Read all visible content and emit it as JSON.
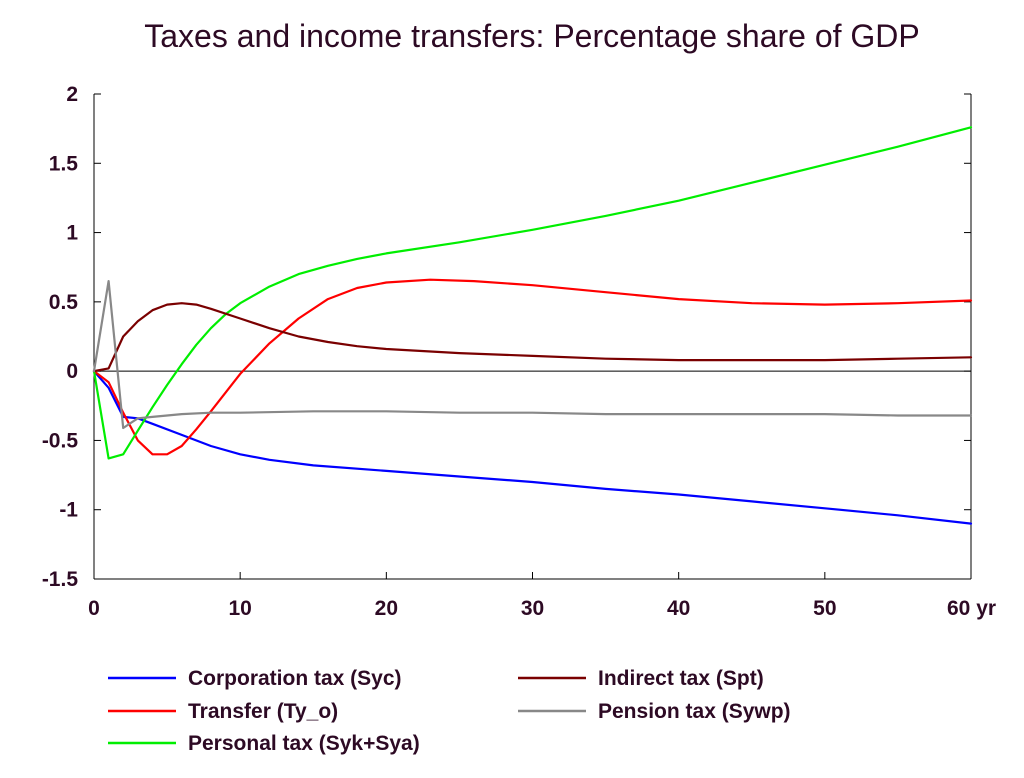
{
  "chart_data": {
    "type": "line",
    "title": "Taxes and income transfers: Percentage share of GDP",
    "xlabel": "",
    "ylabel": "",
    "x_unit_label": "yr",
    "xlim": [
      0,
      60
    ],
    "ylim": [
      -1.5,
      2
    ],
    "x_ticks": [
      0,
      10,
      20,
      30,
      40,
      50,
      60
    ],
    "x_tick_labels": [
      "0",
      "10",
      "20",
      "30",
      "40",
      "50",
      "60 yr"
    ],
    "y_ticks": [
      -1.5,
      -1,
      -0.5,
      0,
      0.5,
      1,
      1.5,
      2
    ],
    "y_tick_labels": [
      "-1.5",
      "-1",
      "-0.5",
      "0",
      "0.5",
      "1",
      "1.5",
      "2"
    ],
    "grid": false,
    "zero_line": true,
    "legend_position": "bottom",
    "series": [
      {
        "name": "Corporation tax (Syc)",
        "color": "#0000ff",
        "legend_col": 0,
        "legend_row": 0,
        "x": [
          0,
          1,
          2,
          3,
          4,
          6,
          8,
          10,
          12,
          15,
          20,
          25,
          30,
          35,
          40,
          45,
          50,
          55,
          60
        ],
        "y": [
          0,
          -0.12,
          -0.33,
          -0.34,
          -0.38,
          -0.46,
          -0.54,
          -0.6,
          -0.64,
          -0.68,
          -0.72,
          -0.76,
          -0.8,
          -0.85,
          -0.89,
          -0.94,
          -0.99,
          -1.04,
          -1.1
        ]
      },
      {
        "name": "Transfer (Ty_o)",
        "color": "#ff0000",
        "legend_col": 0,
        "legend_row": 1,
        "x": [
          0,
          1,
          2,
          3,
          4,
          5,
          6,
          7,
          8,
          10,
          12,
          14,
          16,
          18,
          20,
          23,
          26,
          30,
          35,
          40,
          45,
          50,
          55,
          60
        ],
        "y": [
          0,
          -0.08,
          -0.3,
          -0.5,
          -0.6,
          -0.6,
          -0.54,
          -0.42,
          -0.29,
          -0.02,
          0.2,
          0.38,
          0.52,
          0.6,
          0.64,
          0.66,
          0.65,
          0.62,
          0.57,
          0.52,
          0.49,
          0.48,
          0.49,
          0.51
        ]
      },
      {
        "name": "Personal tax (Syk+Sya)",
        "color": "#00ee00",
        "legend_col": 0,
        "legend_row": 2,
        "x": [
          0,
          1,
          2,
          3,
          4,
          5,
          6,
          7,
          8,
          9,
          10,
          12,
          14,
          16,
          18,
          20,
          25,
          30,
          35,
          40,
          45,
          50,
          55,
          60
        ],
        "y": [
          0,
          -0.63,
          -0.6,
          -0.43,
          -0.26,
          -0.1,
          0.05,
          0.19,
          0.31,
          0.41,
          0.49,
          0.61,
          0.7,
          0.76,
          0.81,
          0.85,
          0.93,
          1.02,
          1.12,
          1.23,
          1.36,
          1.49,
          1.62,
          1.76
        ]
      },
      {
        "name": "Indirect tax (Spt)",
        "color": "#7a0000",
        "legend_col": 1,
        "legend_row": 0,
        "x": [
          0,
          1,
          2,
          3,
          4,
          5,
          6,
          7,
          8,
          10,
          12,
          14,
          16,
          18,
          20,
          25,
          30,
          35,
          40,
          45,
          50,
          55,
          60
        ],
        "y": [
          0,
          0.02,
          0.25,
          0.36,
          0.44,
          0.48,
          0.49,
          0.48,
          0.45,
          0.38,
          0.31,
          0.25,
          0.21,
          0.18,
          0.16,
          0.13,
          0.11,
          0.09,
          0.08,
          0.08,
          0.08,
          0.09,
          0.1
        ]
      },
      {
        "name": "Pension tax (Sywp)",
        "color": "#888888",
        "legend_col": 1,
        "legend_row": 1,
        "x": [
          0,
          1,
          2,
          3,
          4,
          6,
          8,
          10,
          15,
          20,
          25,
          30,
          35,
          40,
          45,
          50,
          55,
          60
        ],
        "y": [
          0,
          0.65,
          -0.41,
          -0.34,
          -0.33,
          -0.31,
          -0.3,
          -0.3,
          -0.29,
          -0.29,
          -0.3,
          -0.3,
          -0.31,
          -0.31,
          -0.31,
          -0.31,
          -0.32,
          -0.32
        ]
      }
    ]
  }
}
